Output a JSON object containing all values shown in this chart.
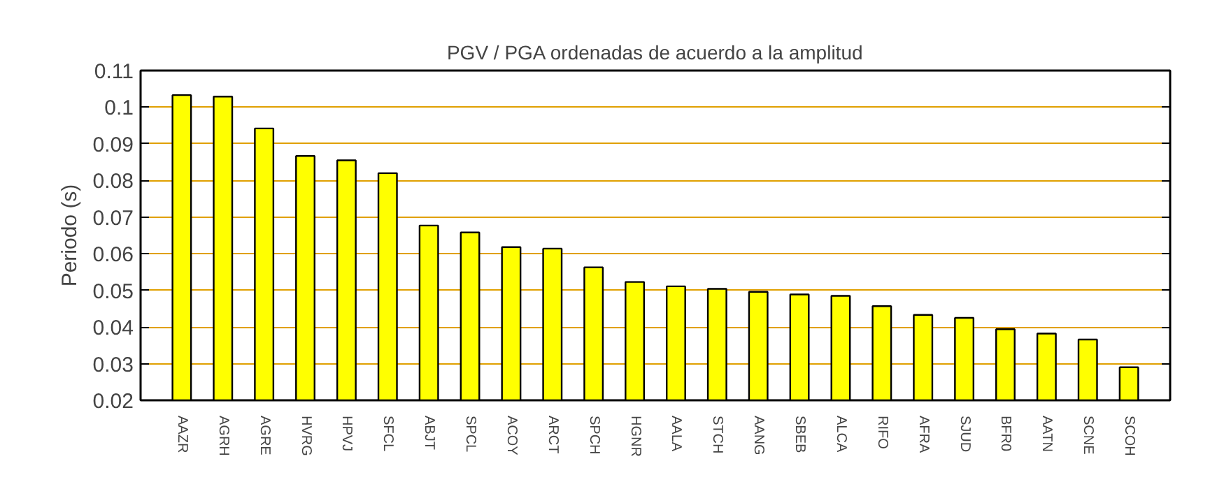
{
  "chart_data": {
    "type": "bar",
    "title": "PGV / PGA ordenadas de acuerdo a la amplitud",
    "ylabel": "Periodo (s)",
    "categories": [
      "AAZR",
      "AGRH",
      "AGRE",
      "HVRG",
      "HPVJ",
      "SFCL",
      "ABJT",
      "SPCL",
      "ACOY",
      "ARCT",
      "SPCH",
      "HGNR",
      "AALA",
      "STCH",
      "AANG",
      "SBEB",
      "ALCA",
      "RIFO",
      "AFRA",
      "SJUD",
      "BFR0",
      "AATN",
      "SCNE",
      "SCOH"
    ],
    "values": [
      0.1033,
      0.1029,
      0.0942,
      0.0867,
      0.0855,
      0.082,
      0.0677,
      0.0658,
      0.0618,
      0.0614,
      0.0563,
      0.0523,
      0.0511,
      0.0504,
      0.0496,
      0.0489,
      0.0485,
      0.0457,
      0.0433,
      0.0425,
      0.0394,
      0.0382,
      0.0366,
      0.029
    ],
    "color": "#ffff00",
    "ylim": [
      0.02,
      0.11
    ],
    "yticks": [
      0.02,
      0.03,
      0.04,
      0.05,
      0.06,
      0.07,
      0.08,
      0.09,
      0.1,
      0.11
    ],
    "grid": "y"
  }
}
